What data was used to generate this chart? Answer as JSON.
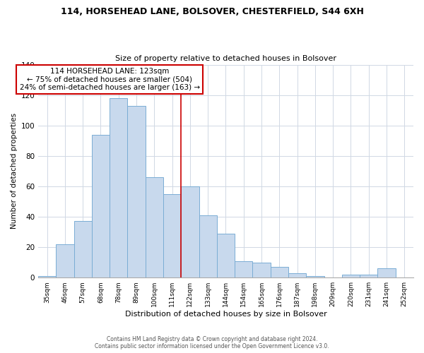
{
  "title_line1": "114, HORSEHEAD LANE, BOLSOVER, CHESTERFIELD, S44 6XH",
  "title_line2": "Size of property relative to detached houses in Bolsover",
  "xlabel": "Distribution of detached houses by size in Bolsover",
  "ylabel": "Number of detached properties",
  "bin_labels": [
    "35sqm",
    "46sqm",
    "57sqm",
    "68sqm",
    "78sqm",
    "89sqm",
    "100sqm",
    "111sqm",
    "122sqm",
    "133sqm",
    "144sqm",
    "154sqm",
    "165sqm",
    "176sqm",
    "187sqm",
    "198sqm",
    "209sqm",
    "220sqm",
    "231sqm",
    "241sqm",
    "252sqm"
  ],
  "bar_values": [
    1,
    22,
    37,
    94,
    118,
    113,
    66,
    55,
    60,
    41,
    29,
    11,
    10,
    7,
    3,
    1,
    0,
    2,
    2,
    6,
    0
  ],
  "bar_color": "#c8d9ed",
  "bar_edge_color": "#7aadd4",
  "vline_label": "114 HORSEHEAD LANE: 123sqm",
  "annotation_line1": "← 75% of detached houses are smaller (504)",
  "annotation_line2": "24% of semi-detached houses are larger (163) →",
  "vline_color": "#cc0000",
  "annotation_box_edge": "#cc0000",
  "annotation_box_face": "#ffffff",
  "footer_line1": "Contains HM Land Registry data © Crown copyright and database right 2024.",
  "footer_line2": "Contains public sector information licensed under the Open Government Licence v3.0.",
  "ylim": [
    0,
    140
  ],
  "yticks": [
    0,
    20,
    40,
    60,
    80,
    100,
    120,
    140
  ],
  "background_color": "#ffffff",
  "grid_color": "#d0d8e4"
}
